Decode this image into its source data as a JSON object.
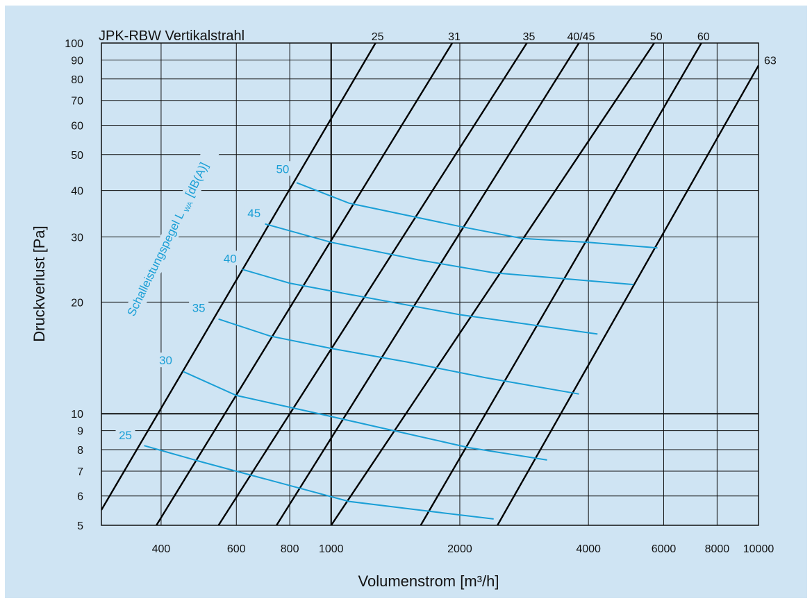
{
  "chart_data": {
    "type": "line",
    "title": "JPK-RBW  Vertikalstrahl",
    "xlabel": "Volumenstrom [m³/h]",
    "ylabel": "Druckverlust [Pa]",
    "x_scale": "log",
    "y_scale": "log",
    "xlim": [
      290,
      10000
    ],
    "ylim": [
      5,
      100
    ],
    "grid": true,
    "x_ticks": [
      400,
      600,
      800,
      1000,
      2000,
      4000,
      6000,
      8000,
      10000
    ],
    "x_tick_labels": [
      "400",
      "600",
      "800",
      "1000",
      "2000",
      "4000",
      "6000",
      "8000",
      "10000"
    ],
    "y_ticks": [
      5,
      6,
      7,
      8,
      9,
      10,
      20,
      30,
      40,
      50,
      60,
      70,
      80,
      90,
      100
    ],
    "y_tick_labels": [
      "5",
      "6",
      "7",
      "8",
      "9",
      "10",
      "20",
      "30",
      "40",
      "50",
      "60",
      "70",
      "80",
      "90",
      "100"
    ],
    "sound_axis_label": "Schalleistungspegel L",
    "sound_axis_subscript": "WA",
    "sound_axis_unit": "[dB(A)]",
    "system_lines": [
      {
        "name": "25",
        "points": [
          [
            290,
            5.5
          ],
          [
            1270,
            100
          ]
        ]
      },
      {
        "name": "31",
        "points": [
          [
            390,
            5
          ],
          [
            1920,
            100
          ]
        ]
      },
      {
        "name": "35",
        "points": [
          [
            545,
            5
          ],
          [
            2870,
            100
          ]
        ]
      },
      {
        "name": "40/45",
        "points": [
          [
            745,
            5
          ],
          [
            3800,
            100
          ]
        ]
      },
      {
        "name": "50",
        "points": [
          [
            1000,
            5
          ],
          [
            5700,
            100
          ]
        ]
      },
      {
        "name": "60",
        "points": [
          [
            1620,
            5
          ],
          [
            7350,
            100
          ]
        ]
      },
      {
        "name": "63",
        "points": [
          [
            2450,
            5
          ],
          [
            10000,
            87
          ]
        ]
      }
    ],
    "series": [
      {
        "name": "25",
        "points": [
          [
            365,
            8.2
          ],
          [
            500,
            7.4
          ],
          [
            800,
            6.4
          ],
          [
            1100,
            5.8
          ],
          [
            1600,
            5.5
          ],
          [
            2400,
            5.2
          ]
        ]
      },
      {
        "name": "30",
        "points": [
          [
            450,
            13
          ],
          [
            600,
            11.2
          ],
          [
            900,
            10.1
          ],
          [
            1400,
            9.0
          ],
          [
            2100,
            8.1
          ],
          [
            3200,
            7.5
          ]
        ]
      },
      {
        "name": "35",
        "points": [
          [
            545,
            18
          ],
          [
            720,
            16.2
          ],
          [
            1000,
            15.0
          ],
          [
            1500,
            13.8
          ],
          [
            2300,
            12.5
          ],
          [
            3800,
            11.3
          ]
        ]
      },
      {
        "name": "40",
        "points": [
          [
            620,
            24.5
          ],
          [
            800,
            22.5
          ],
          [
            1100,
            21.0
          ],
          [
            2000,
            18.5
          ],
          [
            4200,
            16.4
          ]
        ]
      },
      {
        "name": "45",
        "points": [
          [
            700,
            32.5
          ],
          [
            1000,
            29.0
          ],
          [
            1600,
            26.0
          ],
          [
            2400,
            24.0
          ],
          [
            5100,
            22.3
          ]
        ]
      },
      {
        "name": "50",
        "points": [
          [
            830,
            42
          ],
          [
            1100,
            37
          ],
          [
            2000,
            32
          ],
          [
            2800,
            29.7
          ],
          [
            4000,
            29.0
          ],
          [
            5800,
            28.0
          ]
        ]
      }
    ],
    "series_label_positions": [
      {
        "name": "25",
        "x": 330,
        "y": 8.6
      },
      {
        "name": "30",
        "x": 410,
        "y": 13.7
      },
      {
        "name": "35",
        "x": 490,
        "y": 19.0
      },
      {
        "name": "40",
        "x": 580,
        "y": 25.8
      },
      {
        "name": "45",
        "x": 660,
        "y": 34.2
      },
      {
        "name": "50",
        "x": 770,
        "y": 45.0
      }
    ]
  },
  "colors": {
    "background": "#cfe4f3",
    "grid": "#111111",
    "system_line": "#000000",
    "sound_line": "#1a9fd6"
  }
}
